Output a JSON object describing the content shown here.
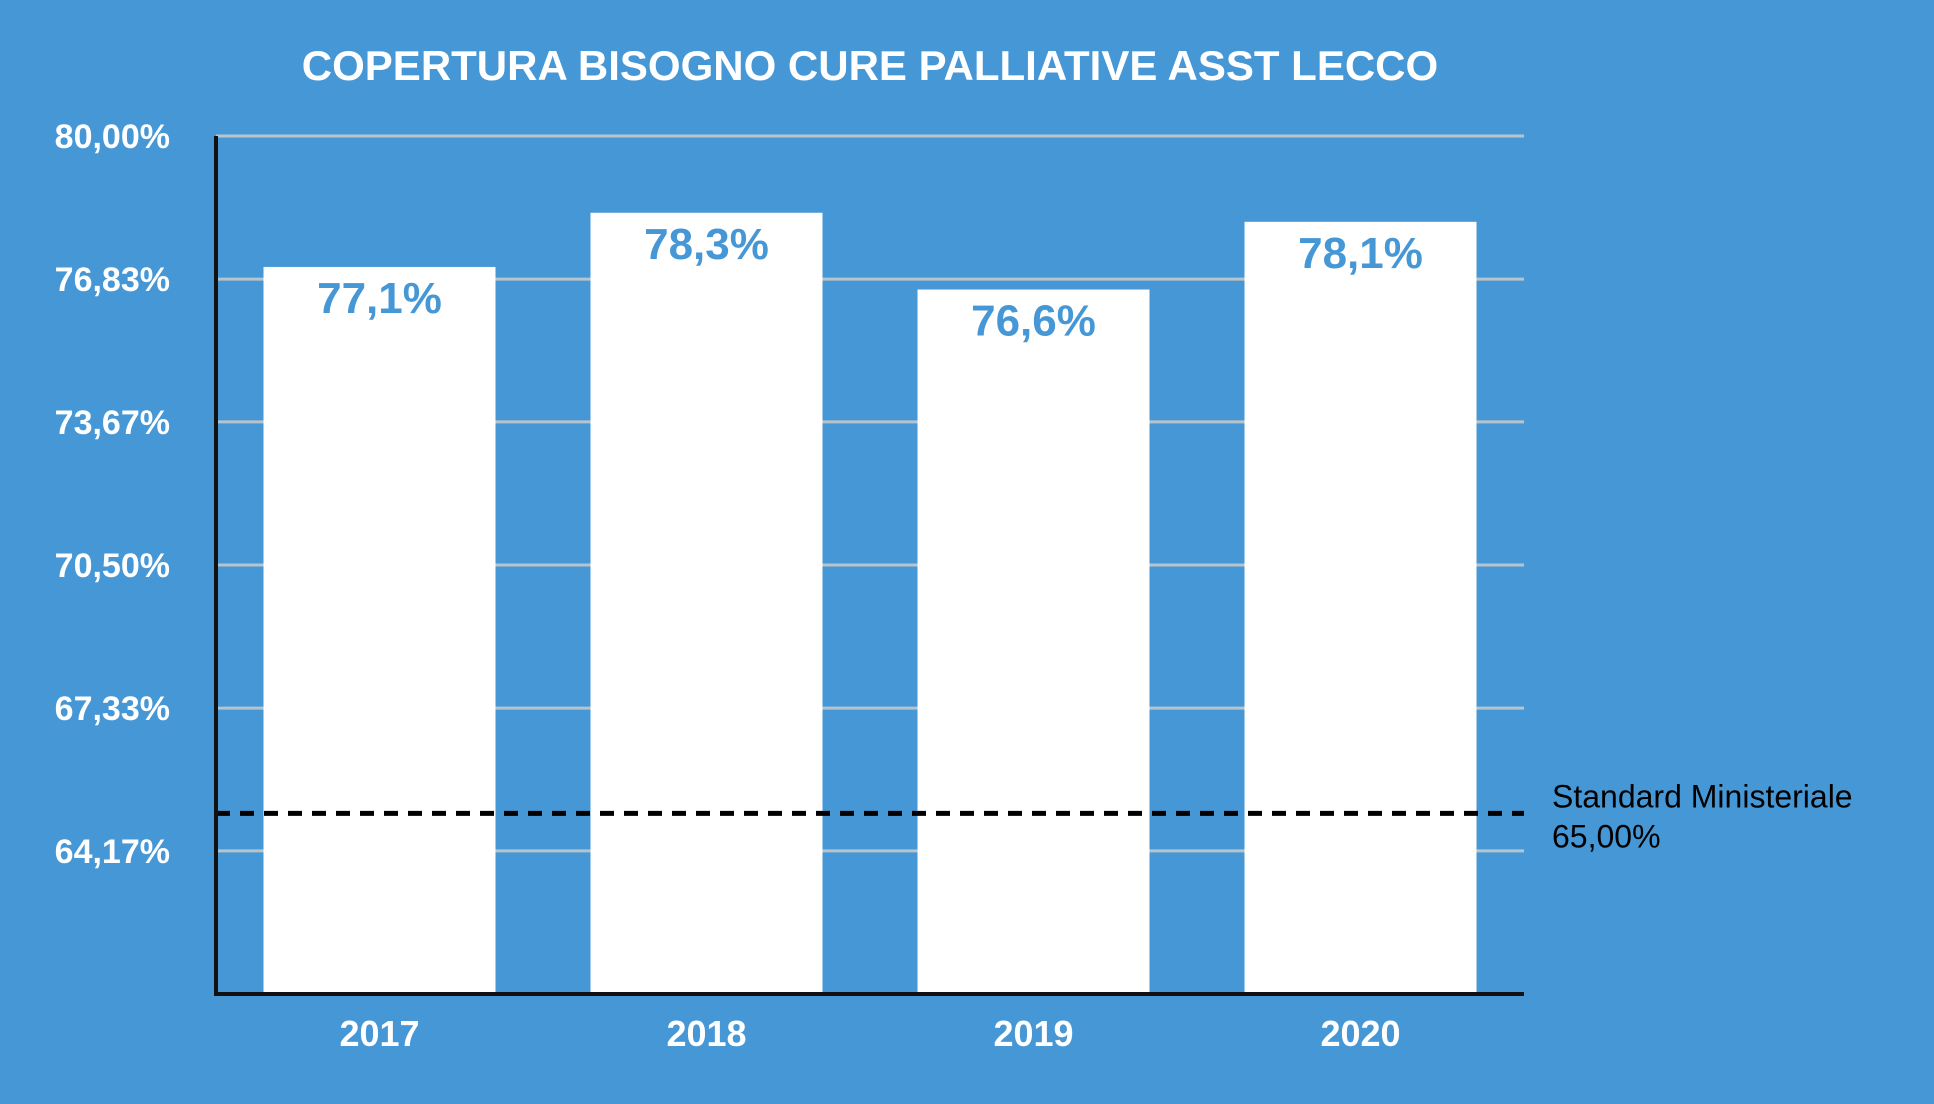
{
  "colors": {
    "background": "#4697d6",
    "bar": "#ffffff",
    "grid": "#b8c4cc",
    "axis": "#111111",
    "label_text": "#4697d6",
    "reference_line": "#000000"
  },
  "chart_data": {
    "type": "bar",
    "title": "COPERTURA BISOGNO CURE PALLIATIVE ASST LECCO",
    "xlabel": "",
    "ylabel": "",
    "categories": [
      "2017",
      "2018",
      "2019",
      "2020"
    ],
    "values": [
      77.1,
      78.3,
      76.6,
      78.1
    ],
    "data_labels": [
      "77,1%",
      "78,3%",
      "76,6%",
      "78,1%"
    ],
    "ylim": [
      61.0,
      80.0
    ],
    "y_ticks": [
      {
        "value": 80.0,
        "label": "80,00%"
      },
      {
        "value": 76.83,
        "label": "76,83%"
      },
      {
        "value": 73.67,
        "label": "73,67%"
      },
      {
        "value": 70.5,
        "label": "70,50%"
      },
      {
        "value": 67.33,
        "label": "67,33%"
      },
      {
        "value": 64.17,
        "label": "64,17%"
      }
    ],
    "grid": true,
    "reference_line": {
      "value": 65.0,
      "label_lines": [
        "Standard Ministeriale",
        "65,00%"
      ],
      "style": "dashed"
    }
  }
}
